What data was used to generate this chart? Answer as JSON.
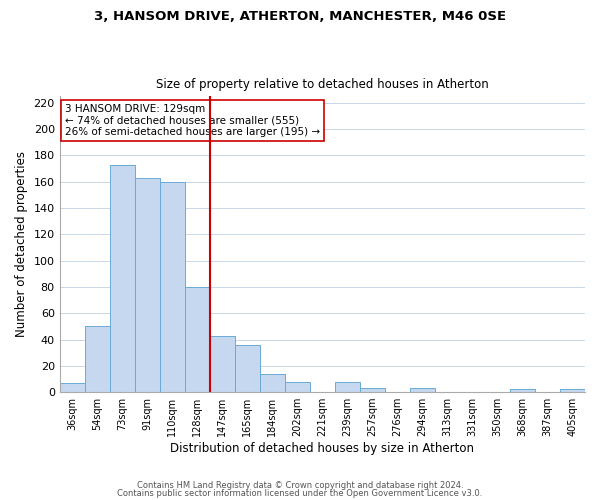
{
  "title1": "3, HANSOM DRIVE, ATHERTON, MANCHESTER, M46 0SE",
  "title2": "Size of property relative to detached houses in Atherton",
  "xlabel": "Distribution of detached houses by size in Atherton",
  "ylabel": "Number of detached properties",
  "bar_labels": [
    "36sqm",
    "54sqm",
    "73sqm",
    "91sqm",
    "110sqm",
    "128sqm",
    "147sqm",
    "165sqm",
    "184sqm",
    "202sqm",
    "221sqm",
    "239sqm",
    "257sqm",
    "276sqm",
    "294sqm",
    "313sqm",
    "331sqm",
    "350sqm",
    "368sqm",
    "387sqm",
    "405sqm"
  ],
  "bar_values": [
    7,
    50,
    173,
    163,
    160,
    80,
    43,
    36,
    14,
    8,
    0,
    8,
    3,
    0,
    3,
    0,
    0,
    0,
    2,
    0,
    2
  ],
  "bar_color": "#c5d8ef",
  "bar_edge_color": "#6aaad4",
  "vline_color": "#cc0000",
  "annotation_text": "3 HANSOM DRIVE: 129sqm\n← 74% of detached houses are smaller (555)\n26% of semi-detached houses are larger (195) →",
  "annotation_box_color": "#ffffff",
  "annotation_box_edge": "#cc0000",
  "ylim": [
    0,
    225
  ],
  "yticks": [
    0,
    20,
    40,
    60,
    80,
    100,
    120,
    140,
    160,
    180,
    200,
    220
  ],
  "footer1": "Contains HM Land Registry data © Crown copyright and database right 2024.",
  "footer2": "Contains public sector information licensed under the Open Government Licence v3.0.",
  "background_color": "#ffffff",
  "grid_color": "#c8d8e8"
}
